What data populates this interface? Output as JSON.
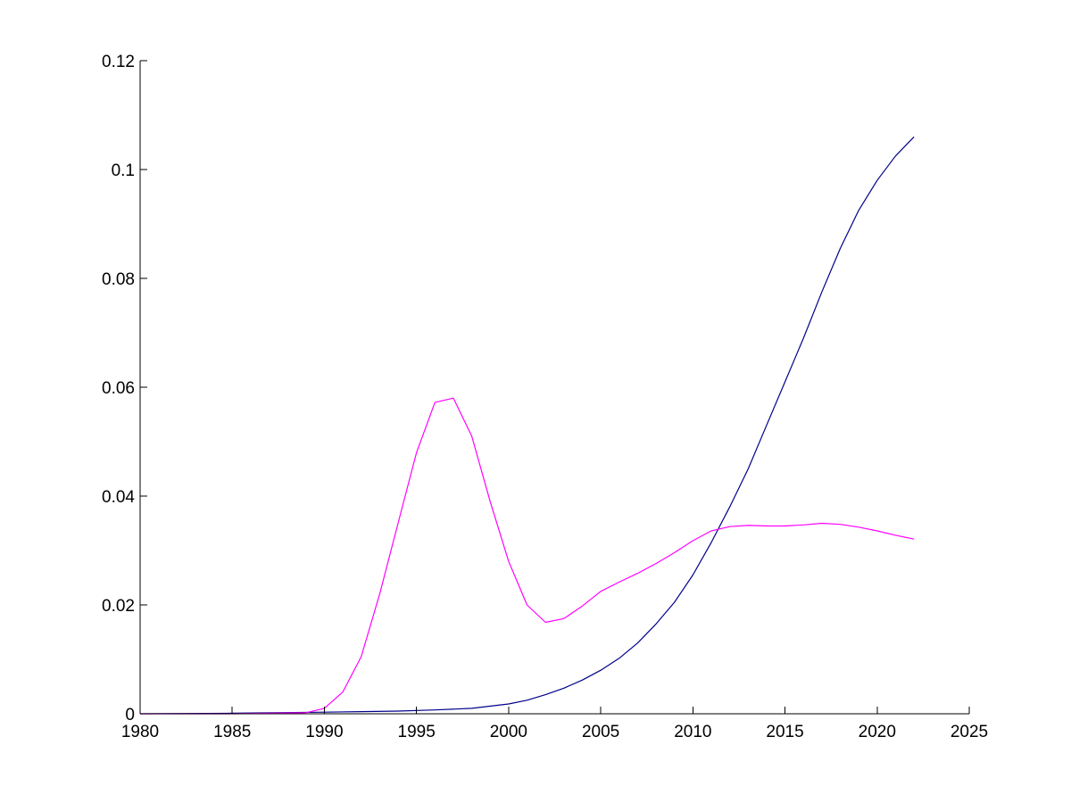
{
  "chart_data": {
    "type": "line",
    "title": "",
    "xlabel": "",
    "ylabel": "",
    "xlim": [
      1980,
      2025
    ],
    "ylim": [
      0,
      0.12
    ],
    "xticks": [
      1980,
      1985,
      1990,
      1995,
      2000,
      2005,
      2010,
      2015,
      2020,
      2025
    ],
    "yticks": [
      0,
      0.02,
      0.04,
      0.06,
      0.08,
      0.1,
      0.12
    ],
    "xtick_labels": [
      "1980",
      "1985",
      "1990",
      "1995",
      "2000",
      "2005",
      "2010",
      "2015",
      "2020",
      "2025"
    ],
    "ytick_labels": [
      "0",
      "0.02",
      "0.04",
      "0.06",
      "0.08",
      "0.1",
      "0.12"
    ],
    "grid": false,
    "legend": null,
    "series": [
      {
        "color": "#00008B",
        "x": [
          1980,
          1985,
          1990,
          1992,
          1994,
          1996,
          1998,
          2000,
          2001,
          2002,
          2003,
          2004,
          2005,
          2006,
          2007,
          2008,
          2009,
          2010,
          2011,
          2012,
          2013,
          2014,
          2015,
          2016,
          2017,
          2018,
          2019,
          2020,
          2021,
          2022
        ],
        "y": [
          0,
          0.0001,
          0.0003,
          0.0004,
          0.0005,
          0.0007,
          0.001,
          0.0018,
          0.0025,
          0.0035,
          0.0047,
          0.0062,
          0.008,
          0.0102,
          0.013,
          0.0165,
          0.0205,
          0.0255,
          0.0315,
          0.038,
          0.045,
          0.053,
          0.061,
          0.069,
          0.0775,
          0.0855,
          0.0925,
          0.098,
          0.1025,
          0.106
        ]
      },
      {
        "color": "#FF00FF",
        "x": [
          1980,
          1985,
          1989,
          1990,
          1991,
          1992,
          1993,
          1994,
          1995,
          1996,
          1997,
          1998,
          1999,
          2000,
          2001,
          2002,
          2003,
          2004,
          2005,
          2006,
          2007,
          2008,
          2009,
          2010,
          2011,
          2012,
          2013,
          2014,
          2015,
          2016,
          2017,
          2018,
          2019,
          2020,
          2021,
          2022
        ],
        "y": [
          0,
          0,
          0.0002,
          0.001,
          0.004,
          0.0105,
          0.022,
          0.035,
          0.048,
          0.0572,
          0.058,
          0.051,
          0.039,
          0.028,
          0.02,
          0.0168,
          0.0175,
          0.0198,
          0.0225,
          0.0242,
          0.0258,
          0.0276,
          0.0296,
          0.0318,
          0.0336,
          0.0344,
          0.0346,
          0.0345,
          0.0345,
          0.0347,
          0.035,
          0.0348,
          0.0343,
          0.0336,
          0.0328,
          0.0321
        ]
      }
    ]
  }
}
